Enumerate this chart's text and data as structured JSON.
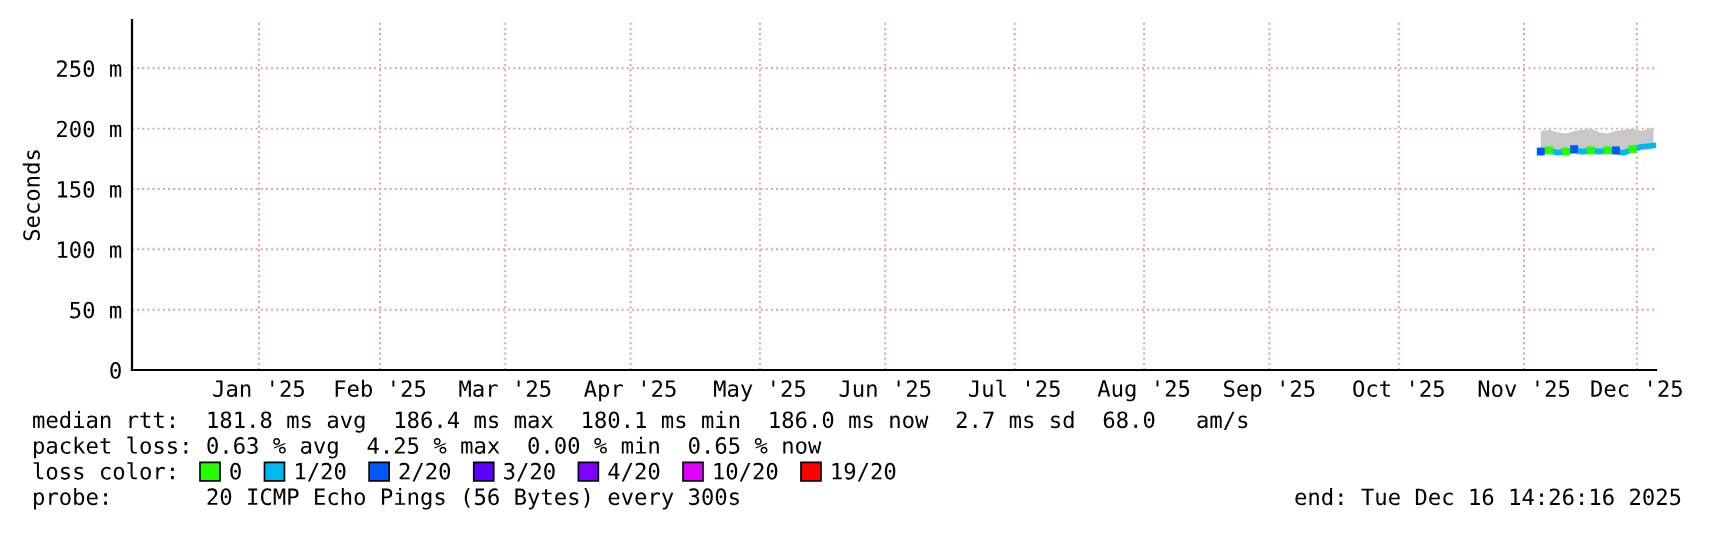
{
  "chart_data": {
    "type": "line",
    "ylabel": "Seconds",
    "x": [
      "2025-11-19",
      "2025-11-21",
      "2025-11-23",
      "2025-11-25",
      "2025-11-27",
      "2025-11-29",
      "2025-12-01",
      "2025-12-03",
      "2025-12-05",
      "2025-12-07",
      "2025-12-09",
      "2025-12-11",
      "2025-12-13",
      "2025-12-16"
    ],
    "series": [
      {
        "name": "0",
        "type": "scatter",
        "marker": "square",
        "color": "#26ff00",
        "values": [
          null,
          182,
          null,
          181,
          null,
          null,
          182,
          null,
          182,
          null,
          null,
          183,
          null,
          null
        ]
      },
      {
        "name": "1/20",
        "color": "#00b8f0",
        "values": [
          181,
          182,
          180,
          181,
          182,
          181,
          182,
          181,
          182,
          181,
          180,
          183,
          185,
          186
        ],
        "lower": [
          178,
          179,
          178,
          178,
          179,
          178,
          179,
          178,
          179,
          178,
          178,
          180,
          182,
          183
        ],
        "upper": [
          198,
          199,
          197,
          196,
          198,
          199,
          200,
          197,
          196,
          198,
          199,
          200,
          198,
          201
        ]
      },
      {
        "name": "2/20",
        "type": "scatter",
        "marker": "square",
        "color": "#0059ff",
        "values": [
          181,
          null,
          null,
          null,
          183,
          null,
          null,
          null,
          null,
          182,
          null,
          null,
          null,
          null
        ]
      },
      {
        "name": "3/20",
        "type": "scatter",
        "marker": "square",
        "color": "#5e00ff",
        "values": [
          null,
          null,
          null,
          null,
          null,
          null,
          null,
          null,
          null,
          null,
          null,
          null,
          null,
          null
        ]
      },
      {
        "name": "4/20",
        "type": "scatter",
        "marker": "square",
        "color": "#7e00ff",
        "values": [
          null,
          null,
          null,
          null,
          null,
          null,
          null,
          null,
          null,
          null,
          null,
          null,
          null,
          null
        ]
      },
      {
        "name": "10/20",
        "type": "scatter",
        "marker": "square",
        "color": "#dd00ff",
        "values": [
          null,
          null,
          null,
          null,
          null,
          null,
          null,
          null,
          null,
          null,
          null,
          null,
          null,
          null
        ]
      },
      {
        "name": "19/20",
        "type": "scatter",
        "marker": "square",
        "color": "#ff0000",
        "values": [
          null,
          null,
          null,
          null,
          null,
          null,
          null,
          null,
          null,
          null,
          null,
          null,
          null,
          null
        ]
      }
    ],
    "xlim": [
      "2024-12-16T14:26",
      "2025-12-16T14:26"
    ],
    "xticks": [
      {
        "value": "2025-01-16",
        "label": "Jan '25"
      },
      {
        "value": "2025-02-14",
        "label": "Feb '25"
      },
      {
        "value": "2025-03-16",
        "label": "Mar '25"
      },
      {
        "value": "2025-04-15",
        "label": "Apr '25"
      },
      {
        "value": "2025-05-16",
        "label": "May '25"
      },
      {
        "value": "2025-06-15",
        "label": "Jun '25"
      },
      {
        "value": "2025-07-16",
        "label": "Jul '25"
      },
      {
        "value": "2025-08-16",
        "label": "Aug '25"
      },
      {
        "value": "2025-09-15",
        "label": "Sep '25"
      },
      {
        "value": "2025-10-16",
        "label": "Oct '25"
      },
      {
        "value": "2025-11-15",
        "label": "Nov '25"
      },
      {
        "value": "2025-12-12",
        "label": "Dec '25"
      }
    ],
    "ylim": [
      0,
      290
    ],
    "yticks": [
      0,
      {
        "value": 50,
        "label": "50 m"
      },
      {
        "value": 100,
        "label": "100 m"
      },
      {
        "value": 150,
        "label": "150 m"
      },
      {
        "value": 200,
        "label": "200 m"
      },
      {
        "value": 250,
        "label": "250 m"
      }
    ],
    "grid": true,
    "legend": "bottom left",
    "legend_title": "loss color:",
    "marker": "none",
    "line_style": "solid",
    "annotations": [
      "median rtt:  181.8 ms avg  186.4 ms max  180.1 ms min  186.0 ms now  2.7 ms sd  68.0   am/s",
      "packet loss: 0.63 % avg  4.25 % max  0.00 % min  0.65 % now",
      "probe:       20 ICMP Echo Pings (56 Bytes) every 300s",
      "end: Tue Dec 16 14:26:16 2025"
    ]
  }
}
